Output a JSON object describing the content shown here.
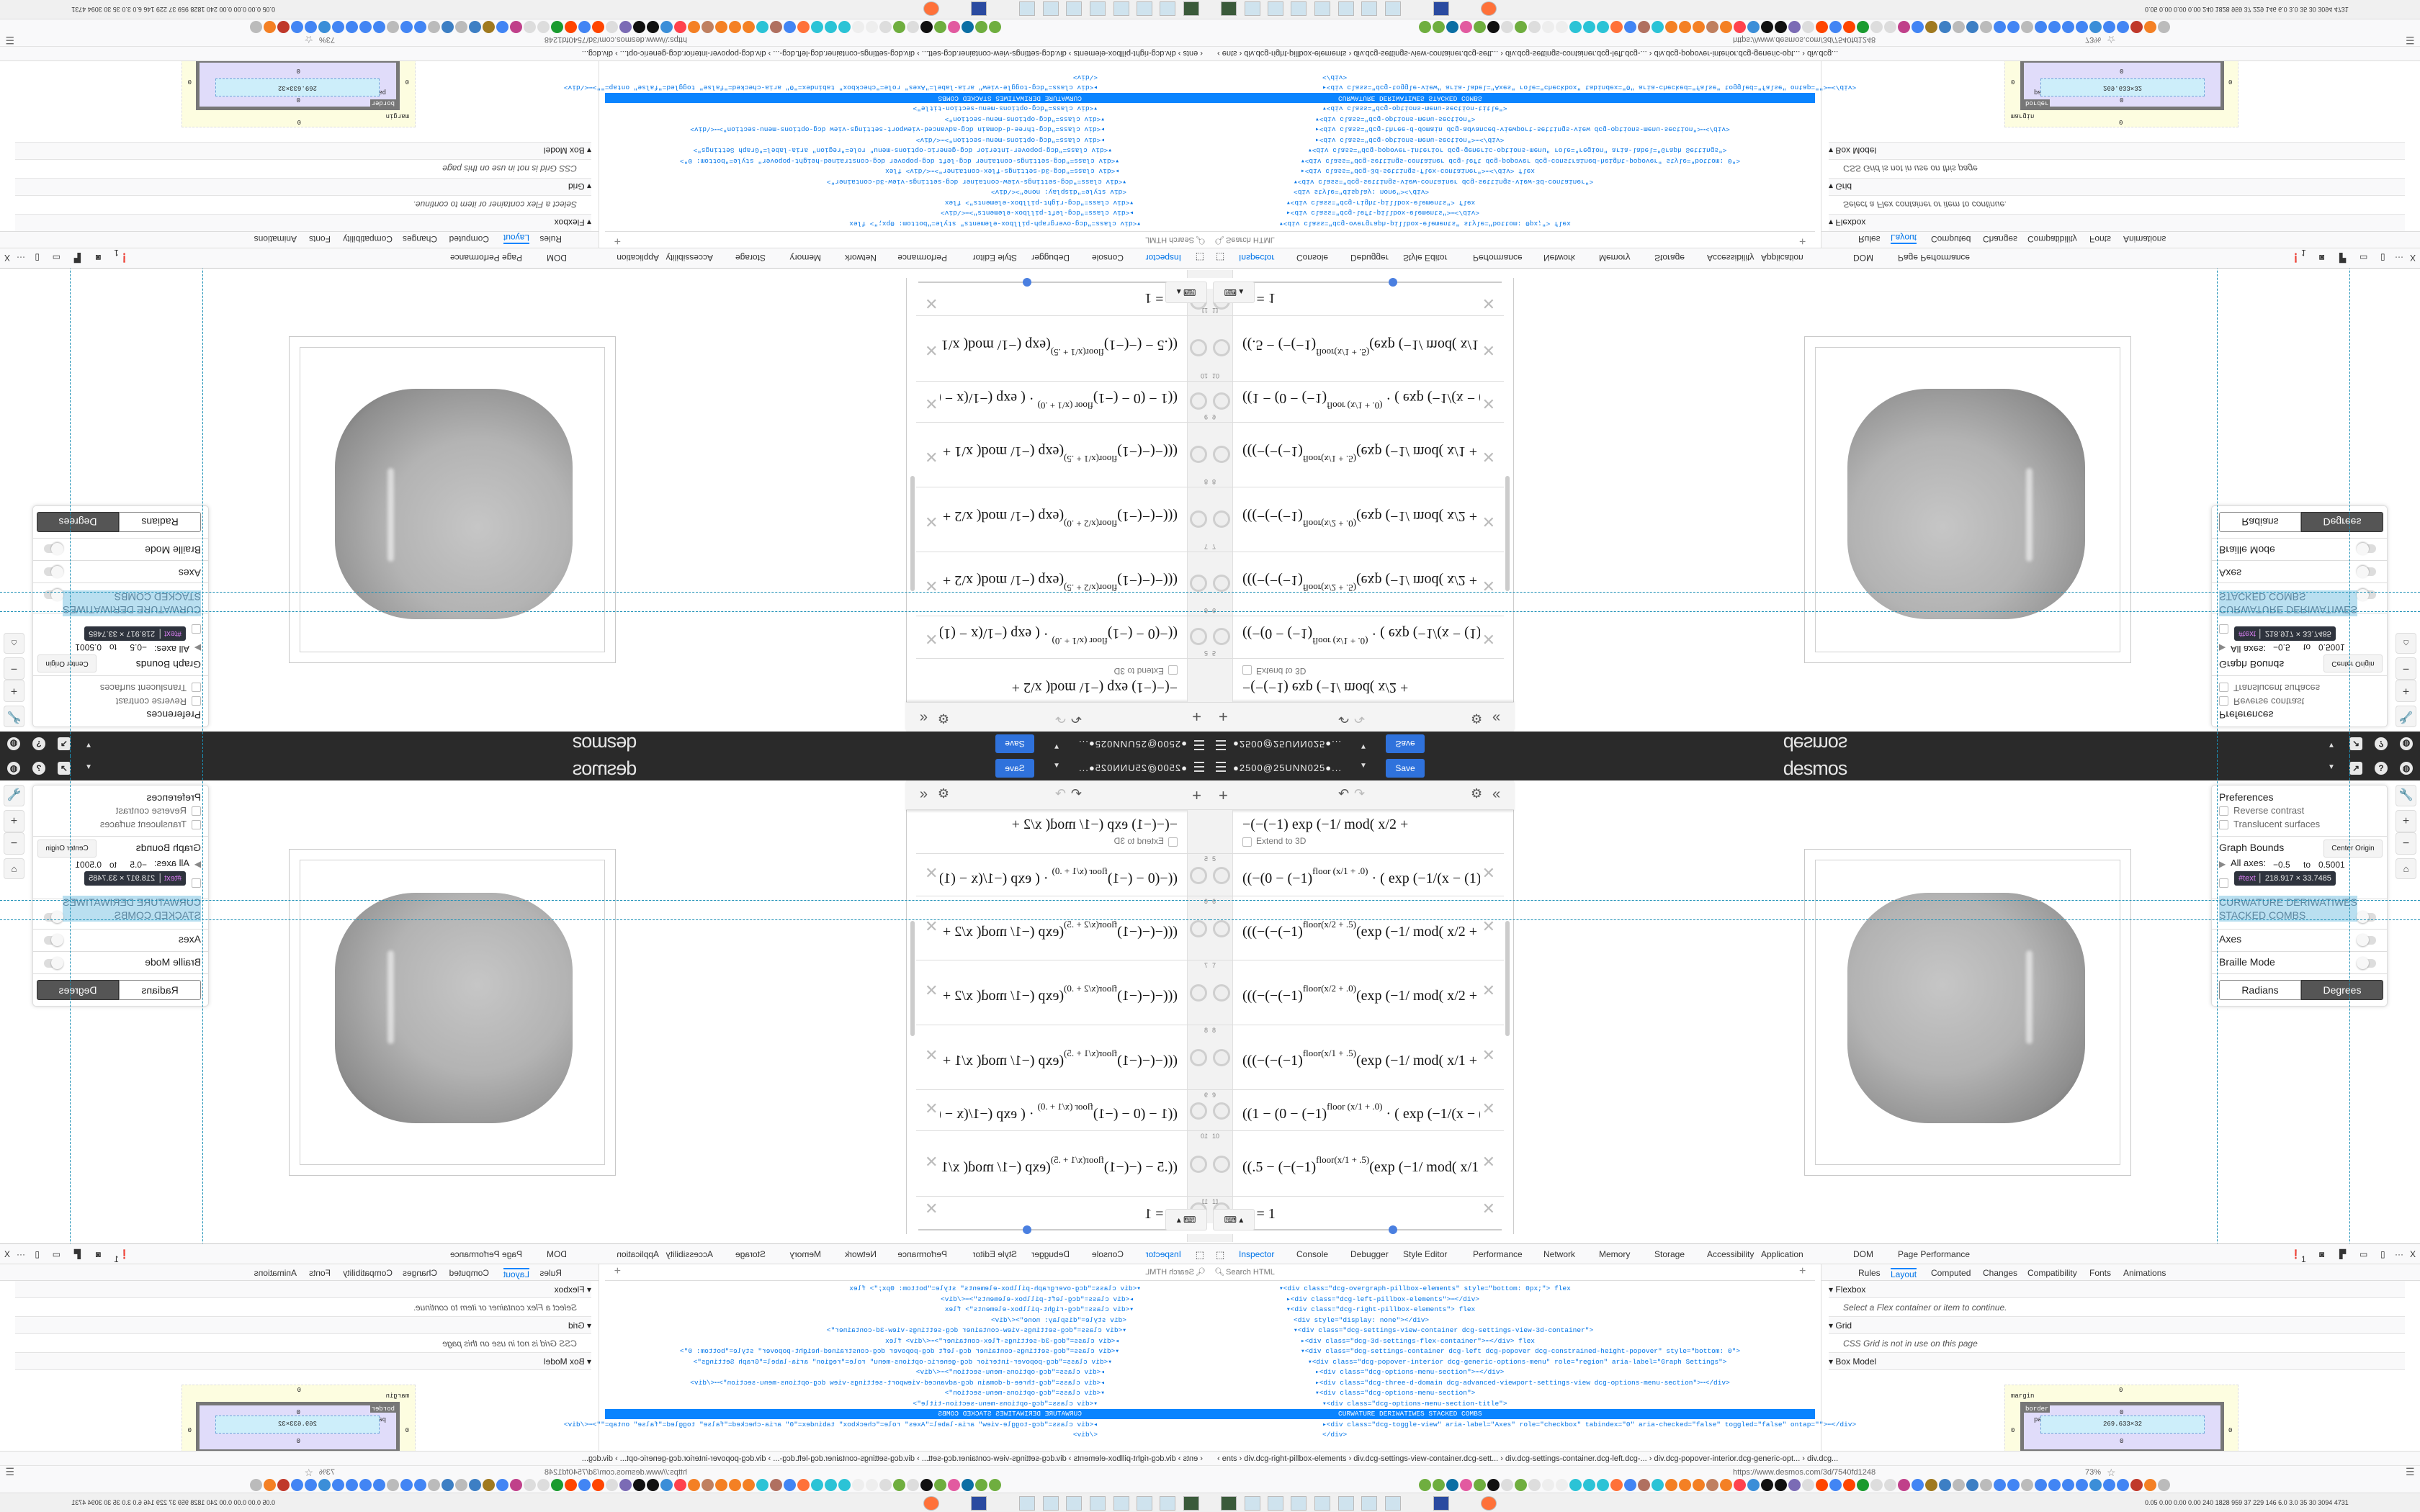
{
  "header": {
    "account": "●2500@25UNN025●...",
    "save_label": "Save",
    "logo": "desmos",
    "icons": [
      "caret-down-icon",
      "share-icon",
      "help-icon",
      "globe-icon"
    ],
    "background": "#2a2a2a",
    "save_color": "#2f72dc"
  },
  "expressions": {
    "toolbar": {
      "add": "+",
      "undo": "↶",
      "redo": "↷",
      "settings": "⚙",
      "collapse": "«"
    },
    "extend_3d": "Extend to 3D",
    "items": [
      {
        "num": "",
        "pre": "−(−(−1)",
        "sup": "",
        "post": "    exp (−1/ mod( x/2 + "
      },
      {
        "num": "5",
        "pre": "((−(0 − (−1)",
        "sup": "floor (x/1 + .0)",
        "post": " · ( exp (−1/(x − (1)*"
      },
      {
        "num": "6",
        "pre": "(((−(−(−1)",
        "sup": "floor(x/2 + .5)",
        "post": "(exp (−1/ mod( x/2 +"
      },
      {
        "num": "7",
        "pre": "(((−(−(−1)",
        "sup": "floor(x/2 + .0)",
        "post": "(exp (−1/ mod( x/2 +"
      },
      {
        "num": "8",
        "pre": "(((−(−(−1)",
        "sup": "floor(x/1 + .5)",
        "post": "(exp (−1/ mod( x/1 +"
      },
      {
        "num": "9",
        "pre": "((1 − (0 − (−1)",
        "sup": "floor (x/1 + .0)",
        "post": " · ( exp (−1/(x − (1"
      },
      {
        "num": "10",
        "pre": "((.5 − (−(−1)",
        "sup": "floor(x/1 + .5)",
        "post": "(exp (−1/ mod( x/1"
      },
      {
        "num": "11",
        "pre": "D = 1",
        "sup": "",
        "post": ""
      }
    ],
    "delete": "✕"
  },
  "settings": {
    "preferences": "Preferences",
    "reverse_contrast": "Reverse contrast",
    "translucent": "Translucent surfaces",
    "graph_bounds": "Graph Bounds",
    "center_origin": "Center Origin",
    "all_axes": "All axes:",
    "min": "−0.5",
    "to": "to",
    "max": "0.5001",
    "highlight_line1": "CURWATURE DERIWATIWES",
    "highlight_line2": "STACKED COMBS",
    "axes": "Axes",
    "braille": "Braille Mode",
    "radians": "Radians",
    "degrees": "Degrees",
    "angle_mode": "Degrees",
    "tooltip_node": "#text",
    "tooltip_size": "218.917 × 33.7485",
    "zoom_in": "+",
    "zoom_out": "−",
    "highlight_color": "#b9dff0"
  },
  "devtools": {
    "tabs": [
      "Inspector",
      "Console",
      "Debugger",
      "Style Editor",
      "Performance",
      "Network",
      "Memory",
      "Storage",
      "Accessibility",
      "Application",
      "DOM",
      "Page Performance"
    ],
    "active_tab": "Inspector",
    "error_count": "1",
    "close": "X",
    "more": "···",
    "search_placeholder": "Search HTML",
    "add": "+",
    "tree": [
      {
        "text": "▾<div class=\"dcg-overgraph-pillbox-elements\" style=\"bottom: 0px;\"> flex"
      },
      {
        "text": "▸<div class=\"dcg-left-pillbox-elements\">⋯</div>"
      },
      {
        "text": "▾<div class=\"dcg-right-pillbox-elements\"> flex"
      },
      {
        "text": "<div style=\"display: none\"></div>"
      },
      {
        "text": "▾<div class=\"dcg-settings-view-container dcg-settings-view-3d-container\">"
      },
      {
        "text": "▸<div class=\"dcg-3d-settings-flex-container\">⋯</div> flex"
      },
      {
        "text": "▾<div class=\"dcg-settings-container dcg-left dcg-popover dcg-constrained-height-popover\" style=\"bottom: 0\">"
      },
      {
        "text": "▾<div class=\"dcg-popover-interior dcg-generic-options-menu\" role=\"region\" aria-label=\"Graph Settings\">"
      },
      {
        "text": "▸<div class=\"dcg-options-menu-section\">⋯</div>"
      },
      {
        "text": "▸<div class=\"dcg-three-d-domain dcg-advanced-viewport-settings-view dcg-options-menu-section\">⋯</div>"
      },
      {
        "text": "▾<div class=\"dcg-options-menu-section\">"
      },
      {
        "text": "▾<div class=\"dcg-options-menu-section-title\">"
      },
      {
        "text": "CURWATURE DERIWATIWES STACKED COMBS"
      },
      {
        "text": "▸<div class=\"dcg-toggle-view\" aria-label=\"Axes\" role=\"checkbox\" tabindex=\"0\" aria-checked=\"false\" toggled=\"false\" ontap=\"\">⋯</div>"
      },
      {
        "text": "</div>"
      }
    ],
    "side_tabs": [
      "Rules",
      "Layout",
      "Computed",
      "Changes",
      "Compatibility",
      "Fonts",
      "Animations"
    ],
    "active_side_tab": "Layout",
    "flexbox": "Flexbox",
    "flexbox_msg": "Select a Flex container or item to continue.",
    "grid": "Grid",
    "grid_msg": "CSS Grid is not in use on this page",
    "box_model": "Box Model",
    "box": {
      "margin": "margin",
      "border": "border",
      "padding": "padding",
      "content": "269.633×32",
      "zero": "0"
    },
    "breadcrumb": "‹ ents › div.dcg-right-pillbox-elements › div.dcg-settings-view-container.dcg-sett... › div.dcg-settings-container.dcg-left.dcg-... › div.dcg-popover-interior.dcg-generic-opt... › div.dcg..."
  },
  "browser": {
    "url": "https://www.desmos.com/3d/7540fd1248",
    "zoom": "73%",
    "stats": "0.05 0.00 0.00 0.00 240 1828 959 37 229 146 6.0 3.0 35 30 3094 4731",
    "bookmark_icon_colors": [
      "#6fae3f",
      "#6fae3f",
      "#0b6fa4",
      "#e25aa0",
      "#6fae3f",
      "#111",
      "#ddd",
      "#6fae3f",
      "#ddd",
      "#eee",
      "#eee",
      "#2bc3d6",
      "#2bc3d6",
      "#2bc3d6",
      "#ff7139",
      "#4285f4",
      "#b07060",
      "#2bc3d6",
      "#f48024",
      "#f48024",
      "#f48024",
      "#c08060",
      "#f48024",
      "#ff424d",
      "#3b8ed8",
      "#111",
      "#111",
      "#7b6bb5",
      "#ddd",
      "#ff4500",
      "#4285f4",
      "#ff4500",
      "#1a9b2f",
      "#ddd",
      "#ddd",
      "#c0408a",
      "#4285f4",
      "#a07a20",
      "#3d7fc4",
      "#bbb",
      "#3d7fc4",
      "#bbb",
      "#4285f4",
      "#4285f4",
      "#bbb",
      "#4285f4",
      "#4285f4",
      "#4285f4",
      "#4285f4",
      "#3b8ed8",
      "#4285f4",
      "#4285f4",
      "#c0392b",
      "#f48024",
      "#bbb"
    ]
  }
}
